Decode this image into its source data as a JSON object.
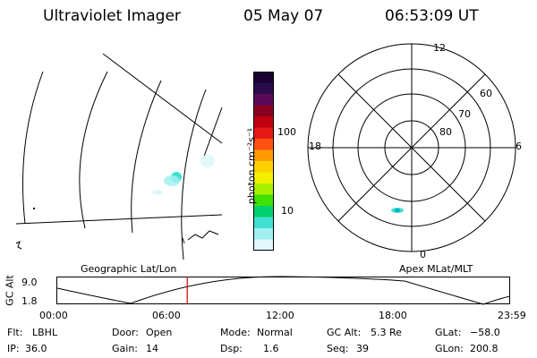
{
  "header": {
    "instrument": "Ultraviolet Imager",
    "date": "05 May 07",
    "time": "06:53:09 UT"
  },
  "colorbar": {
    "unit_label": "photon cm⁻²s⁻¹",
    "scale": "log",
    "ticks": [
      "100",
      "10"
    ],
    "colors": [
      "#1a0033",
      "#2a0a4a",
      "#5a0a5a",
      "#8a0020",
      "#c00010",
      "#e81818",
      "#ff5010",
      "#ff9a00",
      "#ffd000",
      "#f0f000",
      "#a8f000",
      "#40e000",
      "#00d070",
      "#40e0d0",
      "#a0f0f0",
      "#e0f8fa"
    ]
  },
  "geo_panel": {
    "label": "Geographic Lat/Lon"
  },
  "polar_panel": {
    "label": "Apex MLat/MLT",
    "mlt_labels": [
      "12",
      "18",
      "6",
      "0"
    ],
    "mlat_labels": [
      "60",
      "70",
      "80"
    ]
  },
  "altitude_plot": {
    "ylabel": "GC Alt",
    "yticks": [
      "9.0",
      "1.8"
    ],
    "xticks": [
      "00:00",
      "06:00",
      "12:00",
      "18:00",
      "23:59"
    ],
    "current_time_marker": "06:53",
    "marker_color": "#cc0000"
  },
  "footer": {
    "row1": {
      "flt_label": "Flt:",
      "flt_value": "LBHL",
      "door_label": "Door:",
      "door_value": "Open",
      "mode_label": "Mode:",
      "mode_value": "Normal",
      "gcalt_label": "GC Alt:",
      "gcalt_value": "5.3 Re",
      "glat_label": "GLat:",
      "glat_value": "−58.0"
    },
    "row2": {
      "ip_label": "IP:",
      "ip_value": "36.0",
      "gain_label": "Gain:",
      "gain_value": "14",
      "dsp_label": "Dsp:",
      "dsp_value": "1.6",
      "seq_label": "Seq:",
      "seq_value": "39",
      "glon_label": "GLon:",
      "glon_value": "200.8"
    }
  }
}
